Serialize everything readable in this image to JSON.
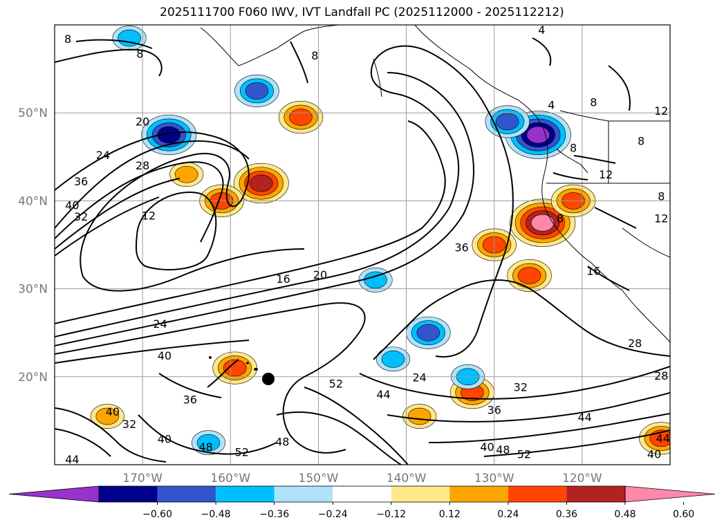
{
  "title": "2025111700 F060 IWV, IVT Landfall PC (2025112000 - 2025112212)",
  "chart_data": {
    "type": "contour map",
    "map": {
      "lon_range": [
        -180,
        -110
      ],
      "lat_range": [
        10,
        60
      ],
      "lon_ticks": [
        {
          "lon": -170,
          "label": "170°W"
        },
        {
          "lon": -160,
          "label": "160°W"
        },
        {
          "lon": -150,
          "label": "150°W"
        },
        {
          "lon": -140,
          "label": "140°W"
        },
        {
          "lon": -130,
          "label": "130°W"
        },
        {
          "lon": -120,
          "label": "120°W"
        }
      ],
      "lat_ticks": [
        {
          "lat": 20,
          "label": "20°N"
        },
        {
          "lat": 30,
          "label": "30°N"
        },
        {
          "lat": 40,
          "label": "40°N"
        },
        {
          "lat": 50,
          "label": "50°N"
        }
      ],
      "grid": true
    },
    "iwv_contours": {
      "labels": [
        {
          "text": "8",
          "lon": -178.5,
          "lat": 58.2
        },
        {
          "text": "8",
          "lon": -170.3,
          "lat": 56.5
        },
        {
          "text": "8",
          "lon": -150.4,
          "lat": 56.3
        },
        {
          "text": "20",
          "lon": -170.0,
          "lat": 48.8
        },
        {
          "text": "24",
          "lon": -174.5,
          "lat": 45.0
        },
        {
          "text": "28",
          "lon": -170.0,
          "lat": 43.8
        },
        {
          "text": "36",
          "lon": -177.0,
          "lat": 42.0
        },
        {
          "text": "40",
          "lon": -178.0,
          "lat": 39.3
        },
        {
          "text": "32",
          "lon": -177.0,
          "lat": 38.0
        },
        {
          "text": "12",
          "lon": -169.3,
          "lat": 38.1
        },
        {
          "text": "16",
          "lon": -154.0,
          "lat": 30.9
        },
        {
          "text": "20",
          "lon": -149.8,
          "lat": 31.4
        },
        {
          "text": "24",
          "lon": -168.0,
          "lat": 25.8
        },
        {
          "text": "40",
          "lon": -167.5,
          "lat": 22.2
        },
        {
          "text": "36",
          "lon": -164.6,
          "lat": 17.2
        },
        {
          "text": "40",
          "lon": -173.4,
          "lat": 15.8
        },
        {
          "text": "32",
          "lon": -171.5,
          "lat": 14.4
        },
        {
          "text": "40",
          "lon": -167.5,
          "lat": 12.7
        },
        {
          "text": "48",
          "lon": -162.8,
          "lat": 11.8
        },
        {
          "text": "52",
          "lon": -158.7,
          "lat": 11.2
        },
        {
          "text": "48",
          "lon": -154.1,
          "lat": 12.4
        },
        {
          "text": "44",
          "lon": -178.0,
          "lat": 10.4
        },
        {
          "text": "52",
          "lon": -148.0,
          "lat": 19.0
        },
        {
          "text": "44",
          "lon": -142.6,
          "lat": 17.8
        },
        {
          "text": "24",
          "lon": -138.5,
          "lat": 19.7
        },
        {
          "text": "36",
          "lon": -133.7,
          "lat": 34.5
        },
        {
          "text": "32",
          "lon": -127.0,
          "lat": 18.6
        },
        {
          "text": "36",
          "lon": -130.0,
          "lat": 16.0
        },
        {
          "text": "44",
          "lon": -119.7,
          "lat": 15.2
        },
        {
          "text": "40",
          "lon": -130.8,
          "lat": 11.8
        },
        {
          "text": "48",
          "lon": -129.0,
          "lat": 11.5
        },
        {
          "text": "52",
          "lon": -126.6,
          "lat": 11.0
        },
        {
          "text": "28",
          "lon": -114.0,
          "lat": 23.6
        },
        {
          "text": "28",
          "lon": -111.0,
          "lat": 19.9
        },
        {
          "text": "16",
          "lon": -118.7,
          "lat": 31.8
        },
        {
          "text": "4",
          "lon": -124.6,
          "lat": 59.2
        },
        {
          "text": "4",
          "lon": -123.5,
          "lat": 50.7
        },
        {
          "text": "8",
          "lon": -118.7,
          "lat": 51.0
        },
        {
          "text": "12",
          "lon": -111.0,
          "lat": 50.0
        },
        {
          "text": "8",
          "lon": -121.0,
          "lat": 45.8
        },
        {
          "text": "8",
          "lon": -113.3,
          "lat": 46.6
        },
        {
          "text": "12",
          "lon": -117.3,
          "lat": 42.8
        },
        {
          "text": "8",
          "lon": -122.5,
          "lat": 37.8
        },
        {
          "text": "8",
          "lon": -111.0,
          "lat": 40.3
        },
        {
          "text": "12",
          "lon": -111.0,
          "lat": 37.8
        },
        {
          "text": "40",
          "lon": -111.8,
          "lat": 11.0
        },
        {
          "text": "44",
          "lon": -110.8,
          "lat": 12.8
        }
      ]
    },
    "pc_anomalies": [
      {
        "lon": -167.0,
        "lat": 47.5,
        "value": -0.55
      },
      {
        "lon": -157.0,
        "lat": 52.5,
        "value": -0.4
      },
      {
        "lon": -125.0,
        "lat": 47.5,
        "value": -0.6
      },
      {
        "lon": -128.5,
        "lat": 49.0,
        "value": -0.45
      },
      {
        "lon": -137.5,
        "lat": 25.0,
        "value": -0.45
      },
      {
        "lon": -156.5,
        "lat": 42.0,
        "value": 0.5
      },
      {
        "lon": -152.0,
        "lat": 49.5,
        "value": 0.4
      },
      {
        "lon": -165.0,
        "lat": 43.0,
        "value": 0.35
      },
      {
        "lon": -161.0,
        "lat": 40.0,
        "value": 0.4
      },
      {
        "lon": -130.0,
        "lat": 35.0,
        "value": 0.4
      },
      {
        "lon": -124.5,
        "lat": 37.5,
        "value": 0.6
      },
      {
        "lon": -126.0,
        "lat": 31.5,
        "value": 0.45
      },
      {
        "lon": -121.0,
        "lat": 40.0,
        "value": 0.4
      },
      {
        "lon": -132.5,
        "lat": 18.2,
        "value": 0.4
      },
      {
        "lon": -138.5,
        "lat": 15.5,
        "value": 0.35
      },
      {
        "lon": -159.5,
        "lat": 21.0,
        "value": 0.4
      },
      {
        "lon": -111.0,
        "lat": 13.0,
        "value": 0.45
      },
      {
        "lon": -174.0,
        "lat": 15.5,
        "value": 0.35
      },
      {
        "lon": -133.0,
        "lat": 20.0,
        "value": -0.3
      },
      {
        "lon": -141.5,
        "lat": 22.0,
        "value": -0.3
      },
      {
        "lon": -171.5,
        "lat": 58.5,
        "value": -0.3
      },
      {
        "lon": -162.5,
        "lat": 12.5,
        "value": -0.3
      },
      {
        "lon": -143.5,
        "lat": 31.0,
        "value": -0.3
      }
    ],
    "colorbar": {
      "ticks": [
        "−0.60",
        "−0.48",
        "−0.36",
        "−0.24",
        "−0.12",
        "0.12",
        "0.24",
        "0.36",
        "0.48",
        "0.60"
      ],
      "colors": [
        "#9932cc",
        "#00008b",
        "#3355cc",
        "#00bfff",
        "#afe3fa",
        "#ffffff",
        "#ffe88a",
        "#ffa500",
        "#ff4500",
        "#b22222",
        "#ff88aa"
      ],
      "extend": "both"
    }
  }
}
